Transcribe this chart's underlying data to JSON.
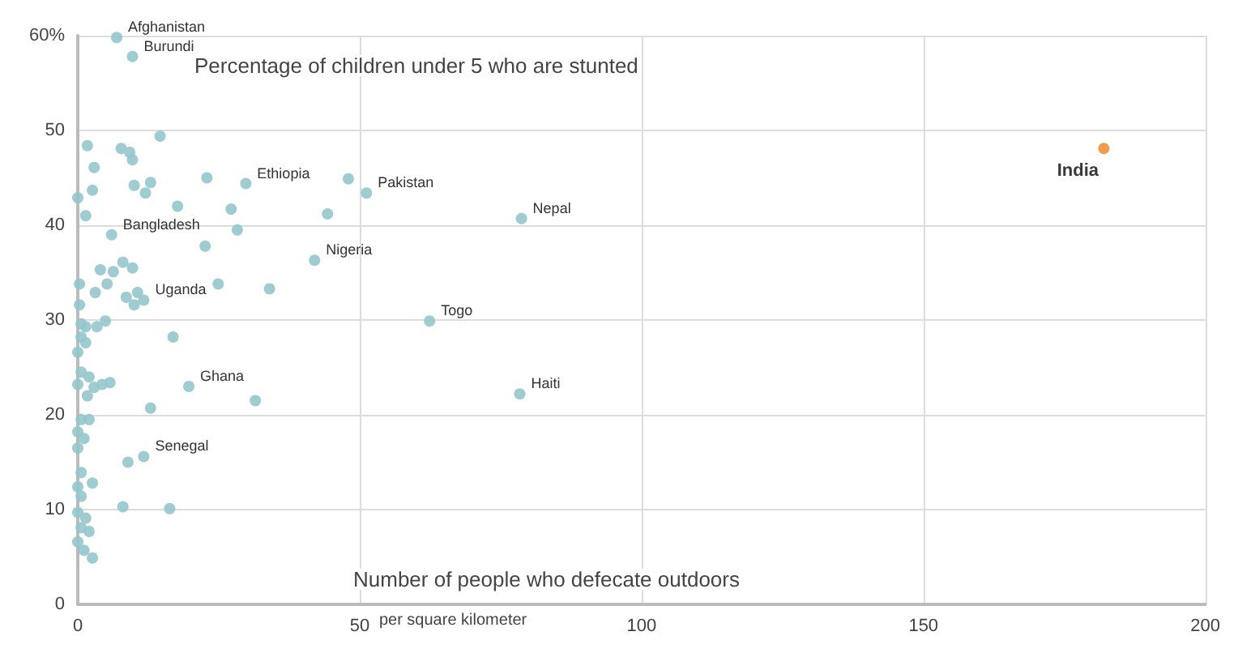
{
  "chart_data": {
    "type": "scatter",
    "ylabel": "Percentage of children under 5 who are stunted",
    "xlabel": "Number of people who defecate outdoors",
    "annotations": [
      "per square kilometer",
      {
        "text": "Afghanistan",
        "x": 6.9,
        "y": 59.8
      },
      {
        "text": "Burundi",
        "x": 9.7,
        "y": 57.8
      },
      {
        "text": "Ethiopia",
        "x": 29.8,
        "y": 44.4
      },
      {
        "text": "Pakistan",
        "x": 51.2,
        "y": 43.4
      },
      {
        "text": "Nepal",
        "x": 78.7,
        "y": 40.7
      },
      {
        "text": "Bangladesh",
        "x": 6,
        "y": 39
      },
      {
        "text": "Nigeria",
        "x": 42,
        "y": 36.3
      },
      {
        "text": "Uganda",
        "x": 11.7,
        "y": 32.1
      },
      {
        "text": "Togo",
        "x": 62.4,
        "y": 29.9
      },
      {
        "text": "Ghana",
        "x": 19.7,
        "y": 23
      },
      {
        "text": "Haiti",
        "x": 78.4,
        "y": 22.2
      },
      {
        "text": "Senegal",
        "x": 11.7,
        "y": 15.6
      }
    ],
    "series": [
      {
        "color": "#93c6cc",
        "x": [
          6.9,
          9.7,
          29.8,
          51.2,
          48,
          78.7,
          42,
          62.4,
          78.4,
          19.7,
          11.7,
          1.7,
          2.9,
          2.6,
          0,
          1.4,
          7.7,
          9.2,
          9.7,
          14.6,
          10,
          12.9,
          12,
          17.7,
          22.9,
          27.2,
          28.3,
          6,
          22.6,
          4,
          6.3,
          8,
          9.7,
          0.3,
          3.1,
          5.2,
          8.6,
          10.6,
          11.7,
          10,
          24.9,
          34,
          0.3,
          44.3,
          0.6,
          1.4,
          3.4,
          4.9,
          0.6,
          1.4,
          0,
          16.9,
          0.6,
          2,
          0,
          2.9,
          1.7,
          5.7,
          4.3,
          31.5,
          12.9,
          0.6,
          2,
          0,
          1.1,
          0,
          0.6,
          2.6,
          0,
          0.6,
          0,
          1.4,
          0.6,
          2,
          0,
          1.1,
          2.6,
          8.9,
          8,
          16.3
        ],
        "values": [
          59.8,
          57.8,
          44.4,
          43.4,
          44.9,
          40.7,
          36.3,
          29.9,
          22.2,
          23,
          15.6,
          48.4,
          46.1,
          43.7,
          42.9,
          41,
          48.1,
          47.7,
          46.9,
          49.4,
          44.2,
          44.5,
          43.4,
          42,
          45,
          41.7,
          39.5,
          39,
          37.8,
          35.3,
          35.1,
          36.1,
          35.5,
          33.8,
          32.9,
          33.8,
          32.4,
          32.9,
          32.1,
          31.6,
          33.8,
          33.3,
          31.6,
          41.2,
          29.6,
          29.3,
          29.3,
          29.9,
          28.2,
          27.6,
          26.6,
          28.2,
          24.5,
          24,
          23.2,
          22.9,
          22,
          23.4,
          23.2,
          21.5,
          20.7,
          19.5,
          19.5,
          18.2,
          17.5,
          16.5,
          13.9,
          12.8,
          12.4,
          11.4,
          9.7,
          9.1,
          8.1,
          7.7,
          6.6,
          5.7,
          4.9,
          15,
          10.3,
          10.1
        ]
      },
      {
        "name": "India",
        "color": "#f0913a",
        "x": [
          182
        ],
        "values": [
          48.1
        ]
      }
    ],
    "xlim": [
      0,
      200
    ],
    "xticks": [
      0,
      50,
      100,
      150,
      200
    ],
    "ylim": [
      0,
      60
    ],
    "yticks": [
      0,
      10,
      20,
      30,
      40,
      50,
      {
        "value": 60,
        "label": "60%"
      }
    ],
    "grid": true,
    "marker": "circle",
    "legend": false
  }
}
